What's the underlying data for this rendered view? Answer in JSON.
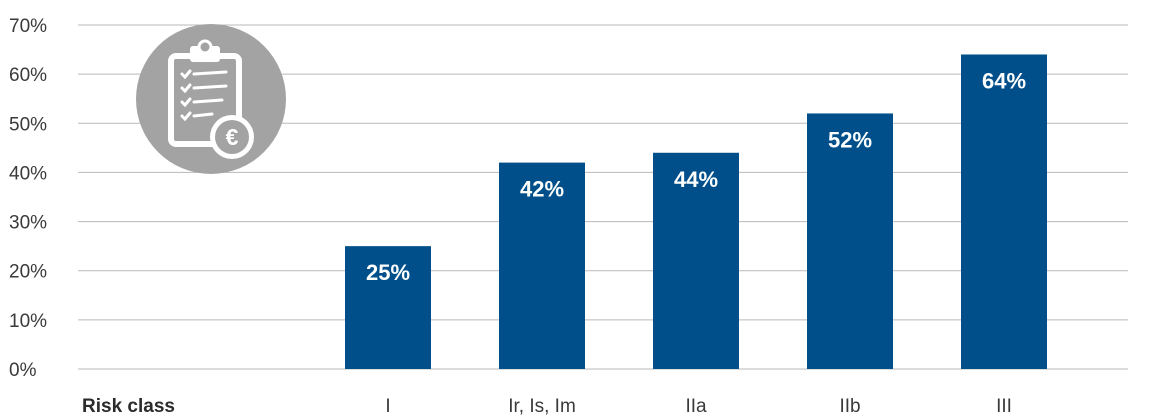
{
  "chart_data": {
    "type": "bar",
    "xlabel": "Risk class",
    "ylabel": "",
    "title": "",
    "categories": [
      "I",
      "Ir, Is, Im",
      "IIa",
      "IIb",
      "III"
    ],
    "values": [
      25,
      42,
      44,
      52,
      64
    ],
    "data_labels": [
      "25%",
      "42%",
      "44%",
      "52%",
      "64%"
    ],
    "ylim": [
      0,
      70
    ],
    "yticks": [
      0,
      10,
      20,
      30,
      40,
      50,
      60,
      70
    ],
    "ytick_labels": [
      "0%",
      "10%",
      "20%",
      "30%",
      "40%",
      "50%",
      "60%",
      "70%"
    ],
    "grid": true,
    "legend": "none",
    "bar_color": "#004f8a",
    "icon": {
      "name": "clipboard-euro-icon",
      "circle_color": "#a3a3a3",
      "symbol": "€"
    }
  }
}
